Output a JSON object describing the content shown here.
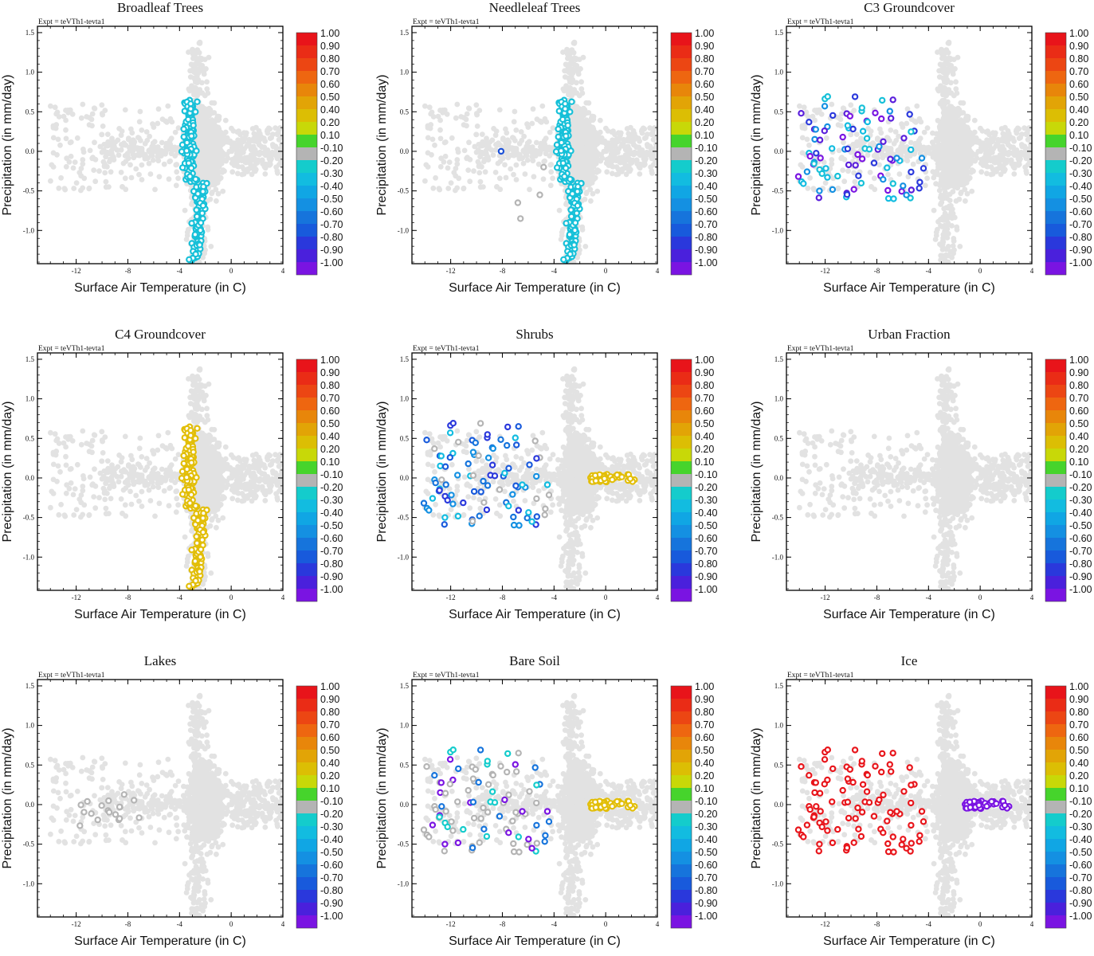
{
  "figure": {
    "expt_label": "Expt = teVTh1-tevta1",
    "xlabel": "Surface Air Temperature (in C)",
    "ylabel": "Precipitation (in mm/day)",
    "xlim": [
      -15,
      4
    ],
    "ylim": [
      -1.42,
      1.58
    ],
    "xticks": [
      -12,
      -8,
      -4,
      0,
      4
    ],
    "yticks": [
      -1.0,
      -0.5,
      0.0,
      0.5,
      1.0,
      1.5
    ],
    "xtick_labels": [
      "-12",
      "-8",
      "-4",
      "0",
      "4"
    ],
    "ytick_labels": [
      "-1.0",
      "-0.5",
      "0.0",
      "0.5",
      "1.0",
      "1.5"
    ],
    "colorbar": {
      "labels": [
        "1.00",
        "0.90",
        "0.80",
        "0.70",
        "0.60",
        "0.50",
        "0.40",
        "0.20",
        "0.10",
        "-0.10",
        "-0.20",
        "-0.30",
        "-0.40",
        "-0.50",
        "-0.60",
        "-0.70",
        "-0.80",
        "-0.90",
        "-1.00"
      ],
      "colors": [
        "#e8141a",
        "#ea2c16",
        "#ec4613",
        "#ee6610",
        "#e8860a",
        "#e2a406",
        "#dcbe04",
        "#c8d808",
        "#46d42c",
        "#b4b4b4",
        "#14cccc",
        "#12bce0",
        "#10a6e4",
        "#1490e2",
        "#1674dc",
        "#185adc",
        "#2a38dc",
        "#4a20dc",
        "#7a14e2"
      ]
    },
    "background_color": "#e2e2e2"
  },
  "chart_data": [
    {
      "type": "scatter",
      "title": "Broadleaf Trees",
      "highlight": [
        {
          "group": "tropical_band",
          "color": "#16c0d8"
        }
      ]
    },
    {
      "type": "scatter",
      "title": "Needleleaf Trees",
      "highlight": [
        {
          "group": "tropical_band",
          "color": "#16c0d8"
        }
      ],
      "extra_points": [
        {
          "x": -8.1,
          "y": 0.0,
          "color": "#1a50d8"
        },
        {
          "x": -4.8,
          "y": -0.2,
          "color": "#b4b4b4"
        },
        {
          "x": -6.6,
          "y": -0.85,
          "color": "#b4b4b4"
        },
        {
          "x": -5.1,
          "y": -0.55,
          "color": "#b4b4b4"
        },
        {
          "x": -6.8,
          "y": -0.65,
          "color": "#b4b4b4"
        }
      ]
    },
    {
      "type": "scatter",
      "title": "C3 Groundcover",
      "highlight": [
        {
          "group": "cold_cluster",
          "colors": [
            "#7a14e2",
            "#5a1edc",
            "#12bce0",
            "#1490e2",
            "#16c0d8",
            "#2a38dc"
          ]
        }
      ]
    },
    {
      "type": "scatter",
      "title": "C4 Groundcover",
      "highlight": [
        {
          "group": "tropical_band",
          "color": "#e2be08"
        }
      ]
    },
    {
      "type": "scatter",
      "title": "Shrubs",
      "highlight": [
        {
          "group": "cold_cluster",
          "colors": [
            "#1674dc",
            "#185adc",
            "#1490e2",
            "#12bce0",
            "#2a38dc",
            "#b4b4b4"
          ]
        },
        {
          "group": "warm_arm",
          "color": "#e2be08"
        }
      ]
    },
    {
      "type": "scatter",
      "title": "Urban Fraction",
      "highlight": []
    },
    {
      "type": "scatter",
      "title": "Lakes",
      "highlight": [
        {
          "group": "cold_cluster_subset",
          "color": "#b4b4b4"
        }
      ]
    },
    {
      "type": "scatter",
      "title": "Bare Soil",
      "highlight": [
        {
          "group": "cold_cluster",
          "colors": [
            "#b4b4b4",
            "#b4b4b4",
            "#b4b4b4",
            "#7a14e2",
            "#14cccc",
            "#1674dc"
          ]
        },
        {
          "group": "warm_arm",
          "color": "#e2be08"
        }
      ]
    },
    {
      "type": "scatter",
      "title": "Ice",
      "highlight": [
        {
          "group": "cold_cluster",
          "color": "#e8141a"
        },
        {
          "group": "warm_arm",
          "color": "#7a14e2"
        }
      ]
    }
  ]
}
